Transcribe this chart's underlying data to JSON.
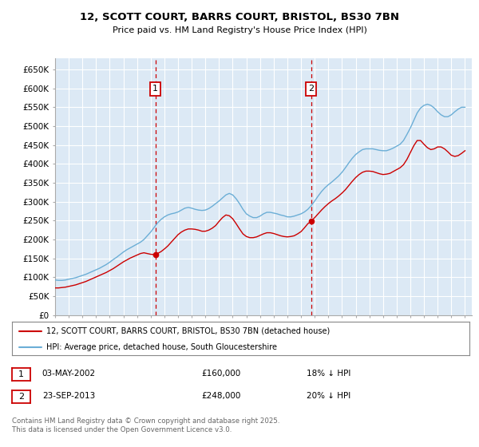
{
  "title": "12, SCOTT COURT, BARRS COURT, BRISTOL, BS30 7BN",
  "subtitle": "Price paid vs. HM Land Registry's House Price Index (HPI)",
  "plot_bg_color": "#dce9f5",
  "hpi_color": "#6baed6",
  "sale_color": "#cc0000",
  "marker1_x": 2002.35,
  "marker1_price_y": 160000,
  "marker2_x": 2013.73,
  "marker2_price_y": 248000,
  "legend_line1": "12, SCOTT COURT, BARRS COURT, BRISTOL, BS30 7BN (detached house)",
  "legend_line2": "HPI: Average price, detached house, South Gloucestershire",
  "marker1_date": "03-MAY-2002",
  "marker1_price": "£160,000",
  "marker1_note": "18% ↓ HPI",
  "marker2_date": "23-SEP-2013",
  "marker2_price": "£248,000",
  "marker2_note": "20% ↓ HPI",
  "footer": "Contains HM Land Registry data © Crown copyright and database right 2025.\nThis data is licensed under the Open Government Licence v3.0.",
  "ylim": [
    0,
    680000
  ],
  "yticks": [
    0,
    50000,
    100000,
    150000,
    200000,
    250000,
    300000,
    350000,
    400000,
    450000,
    500000,
    550000,
    600000,
    650000
  ],
  "ytick_labels": [
    "£0",
    "£50K",
    "£100K",
    "£150K",
    "£200K",
    "£250K",
    "£300K",
    "£350K",
    "£400K",
    "£450K",
    "£500K",
    "£550K",
    "£600K",
    "£650K"
  ],
  "xlim": [
    1995,
    2025.5
  ],
  "xticks": [
    1995,
    1996,
    1997,
    1998,
    1999,
    2000,
    2001,
    2002,
    2003,
    2004,
    2005,
    2006,
    2007,
    2008,
    2009,
    2010,
    2011,
    2012,
    2013,
    2014,
    2015,
    2016,
    2017,
    2018,
    2019,
    2020,
    2021,
    2022,
    2023,
    2024,
    2025
  ],
  "hpi_x": [
    1995.0,
    1995.25,
    1995.5,
    1995.75,
    1996.0,
    1996.25,
    1996.5,
    1996.75,
    1997.0,
    1997.25,
    1997.5,
    1997.75,
    1998.0,
    1998.25,
    1998.5,
    1998.75,
    1999.0,
    1999.25,
    1999.5,
    1999.75,
    2000.0,
    2000.25,
    2000.5,
    2000.75,
    2001.0,
    2001.25,
    2001.5,
    2001.75,
    2002.0,
    2002.25,
    2002.5,
    2002.75,
    2003.0,
    2003.25,
    2003.5,
    2003.75,
    2004.0,
    2004.25,
    2004.5,
    2004.75,
    2005.0,
    2005.25,
    2005.5,
    2005.75,
    2006.0,
    2006.25,
    2006.5,
    2006.75,
    2007.0,
    2007.25,
    2007.5,
    2007.75,
    2008.0,
    2008.25,
    2008.5,
    2008.75,
    2009.0,
    2009.25,
    2009.5,
    2009.75,
    2010.0,
    2010.25,
    2010.5,
    2010.75,
    2011.0,
    2011.25,
    2011.5,
    2011.75,
    2012.0,
    2012.25,
    2012.5,
    2012.75,
    2013.0,
    2013.25,
    2013.5,
    2013.75,
    2014.0,
    2014.25,
    2014.5,
    2014.75,
    2015.0,
    2015.25,
    2015.5,
    2015.75,
    2016.0,
    2016.25,
    2016.5,
    2016.75,
    2017.0,
    2017.25,
    2017.5,
    2017.75,
    2018.0,
    2018.25,
    2018.5,
    2018.75,
    2019.0,
    2019.25,
    2019.5,
    2019.75,
    2020.0,
    2020.25,
    2020.5,
    2020.75,
    2021.0,
    2021.25,
    2021.5,
    2021.75,
    2022.0,
    2022.25,
    2022.5,
    2022.75,
    2023.0,
    2023.25,
    2023.5,
    2023.75,
    2024.0,
    2024.25,
    2024.5,
    2024.75,
    2025.0
  ],
  "hpi_y": [
    93000,
    92000,
    92000,
    93000,
    95000,
    97000,
    99000,
    102000,
    105000,
    108000,
    112000,
    116000,
    120000,
    124000,
    129000,
    134000,
    140000,
    147000,
    153000,
    160000,
    167000,
    173000,
    178000,
    183000,
    188000,
    193000,
    200000,
    210000,
    220000,
    232000,
    244000,
    253000,
    260000,
    265000,
    268000,
    270000,
    273000,
    278000,
    283000,
    285000,
    283000,
    280000,
    278000,
    277000,
    278000,
    282000,
    288000,
    295000,
    302000,
    310000,
    318000,
    322000,
    318000,
    308000,
    295000,
    280000,
    268000,
    262000,
    258000,
    258000,
    262000,
    268000,
    272000,
    272000,
    270000,
    268000,
    265000,
    263000,
    260000,
    260000,
    262000,
    265000,
    268000,
    273000,
    280000,
    290000,
    302000,
    315000,
    327000,
    337000,
    345000,
    352000,
    360000,
    368000,
    378000,
    390000,
    403000,
    415000,
    425000,
    432000,
    438000,
    440000,
    440000,
    440000,
    438000,
    436000,
    435000,
    435000,
    438000,
    442000,
    447000,
    452000,
    462000,
    478000,
    495000,
    515000,
    535000,
    548000,
    555000,
    558000,
    555000,
    548000,
    538000,
    530000,
    525000,
    525000,
    530000,
    538000,
    545000,
    550000,
    550000
  ],
  "sale_x": [
    1995.0,
    1995.25,
    1995.5,
    1995.75,
    1996.0,
    1996.25,
    1996.5,
    1996.75,
    1997.0,
    1997.25,
    1997.5,
    1997.75,
    1998.0,
    1998.25,
    1998.5,
    1998.75,
    1999.0,
    1999.25,
    1999.5,
    1999.75,
    2000.0,
    2000.25,
    2000.5,
    2000.75,
    2001.0,
    2001.25,
    2001.5,
    2001.75,
    2002.0,
    2002.35,
    2002.5,
    2002.75,
    2003.0,
    2003.25,
    2003.5,
    2003.75,
    2004.0,
    2004.25,
    2004.5,
    2004.75,
    2005.0,
    2005.25,
    2005.5,
    2005.75,
    2006.0,
    2006.25,
    2006.5,
    2006.75,
    2007.0,
    2007.25,
    2007.5,
    2007.75,
    2008.0,
    2008.25,
    2008.5,
    2008.75,
    2009.0,
    2009.25,
    2009.5,
    2009.75,
    2010.0,
    2010.25,
    2010.5,
    2010.75,
    2011.0,
    2011.25,
    2011.5,
    2011.75,
    2012.0,
    2012.25,
    2012.5,
    2012.75,
    2013.0,
    2013.25,
    2013.5,
    2013.73,
    2014.0,
    2014.25,
    2014.5,
    2014.75,
    2015.0,
    2015.25,
    2015.5,
    2015.75,
    2016.0,
    2016.25,
    2016.5,
    2016.75,
    2017.0,
    2017.25,
    2017.5,
    2017.75,
    2018.0,
    2018.25,
    2018.5,
    2018.75,
    2019.0,
    2019.25,
    2019.5,
    2019.75,
    2020.0,
    2020.25,
    2020.5,
    2020.75,
    2021.0,
    2021.25,
    2021.5,
    2021.75,
    2022.0,
    2022.25,
    2022.5,
    2022.75,
    2023.0,
    2023.25,
    2023.5,
    2023.75,
    2024.0,
    2024.25,
    2024.5,
    2024.75,
    2025.0
  ],
  "sale_y": [
    72000,
    72000,
    73000,
    74000,
    76000,
    78000,
    80000,
    83000,
    86000,
    89000,
    93000,
    97000,
    101000,
    105000,
    109000,
    113000,
    118000,
    123000,
    129000,
    135000,
    141000,
    146000,
    151000,
    155000,
    159000,
    163000,
    165000,
    163000,
    161000,
    160000,
    163000,
    168000,
    175000,
    183000,
    193000,
    203000,
    213000,
    220000,
    225000,
    228000,
    228000,
    227000,
    225000,
    222000,
    222000,
    225000,
    230000,
    237000,
    248000,
    258000,
    265000,
    263000,
    255000,
    242000,
    228000,
    215000,
    208000,
    205000,
    205000,
    207000,
    211000,
    215000,
    218000,
    218000,
    216000,
    213000,
    210000,
    208000,
    207000,
    208000,
    210000,
    215000,
    221000,
    231000,
    242000,
    248000,
    258000,
    268000,
    278000,
    287000,
    295000,
    302000,
    308000,
    315000,
    323000,
    332000,
    343000,
    354000,
    364000,
    372000,
    378000,
    381000,
    381000,
    380000,
    377000,
    374000,
    372000,
    373000,
    375000,
    380000,
    385000,
    390000,
    398000,
    412000,
    430000,
    448000,
    462000,
    462000,
    452000,
    443000,
    438000,
    440000,
    445000,
    445000,
    440000,
    432000,
    423000,
    420000,
    422000,
    428000,
    435000
  ]
}
